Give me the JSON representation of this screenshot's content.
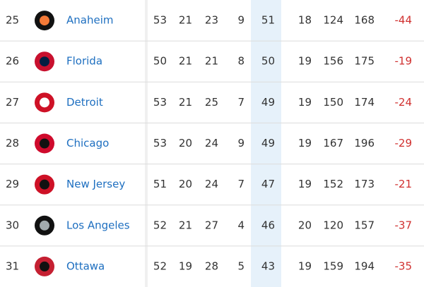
{
  "table": {
    "rows": [
      [
        "25",
        "Anaheim",
        "53",
        "21",
        "23",
        "9",
        "51",
        "18",
        "124",
        "168",
        "-44"
      ],
      [
        "26",
        "Florida",
        "50",
        "21",
        "21",
        "8",
        "50",
        "19",
        "156",
        "175",
        "-19"
      ],
      [
        "27",
        "Detroit",
        "53",
        "21",
        "25",
        "7",
        "49",
        "19",
        "150",
        "174",
        "-24"
      ],
      [
        "28",
        "Chicago",
        "53",
        "20",
        "24",
        "9",
        "49",
        "19",
        "167",
        "196",
        "-29"
      ],
      [
        "29",
        "New Jersey",
        "51",
        "20",
        "24",
        "7",
        "47",
        "19",
        "152",
        "173",
        "-21"
      ],
      [
        "30",
        "Los Angeles",
        "52",
        "21",
        "27",
        "4",
        "46",
        "20",
        "120",
        "157",
        "-37"
      ],
      [
        "31",
        "Ottawa",
        "52",
        "19",
        "28",
        "5",
        "43",
        "19",
        "159",
        "194",
        "-35"
      ]
    ]
  }
}
